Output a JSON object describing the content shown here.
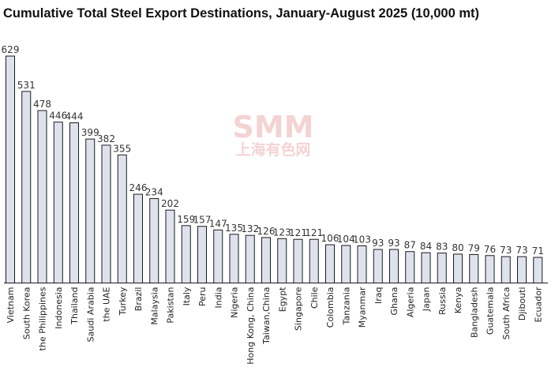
{
  "chart_data": {
    "type": "bar",
    "title": "Cumulative Total Steel Export Destinations, January-August 2025 (10,000 mt)",
    "watermark": {
      "main": "SMM",
      "sub": "上海有色网"
    },
    "categories": [
      "Vietnam",
      "South Korea",
      "the Philippines",
      "Indonesia",
      "Thailand",
      "Saudi Arabia",
      "the UAE",
      "Turkey",
      "Brazil",
      "Malaysia",
      "Pakistan",
      "Italy",
      "Peru",
      "India",
      "Nigeria",
      "Hong Kong, China",
      "Taiwan,China",
      "Egypt",
      "Singapore",
      "Chile",
      "Colombia",
      "Tanzania",
      "Myanmar",
      "Iraq",
      "Ghana",
      "Algeria",
      "Japan",
      "Russia",
      "Kenya",
      "Bangladesh",
      "Guatemala",
      "South Africa",
      "Djibouti",
      "Ecuador"
    ],
    "values": [
      629,
      531,
      478,
      446,
      444,
      399,
      382,
      355,
      246,
      234,
      202,
      159,
      157,
      147,
      135,
      132,
      126,
      123,
      121,
      121,
      106,
      104,
      103,
      93,
      93,
      87,
      84,
      83,
      80,
      79,
      76,
      73,
      73,
      71
    ],
    "ylim": [
      0,
      640
    ],
    "xlabel": "",
    "ylabel": "",
    "grid": false,
    "legend": "none",
    "colors": {
      "bar_fill": "#dde3ee",
      "bar_stroke": "#1a1a1a",
      "watermark": "#e8a0a0"
    }
  }
}
